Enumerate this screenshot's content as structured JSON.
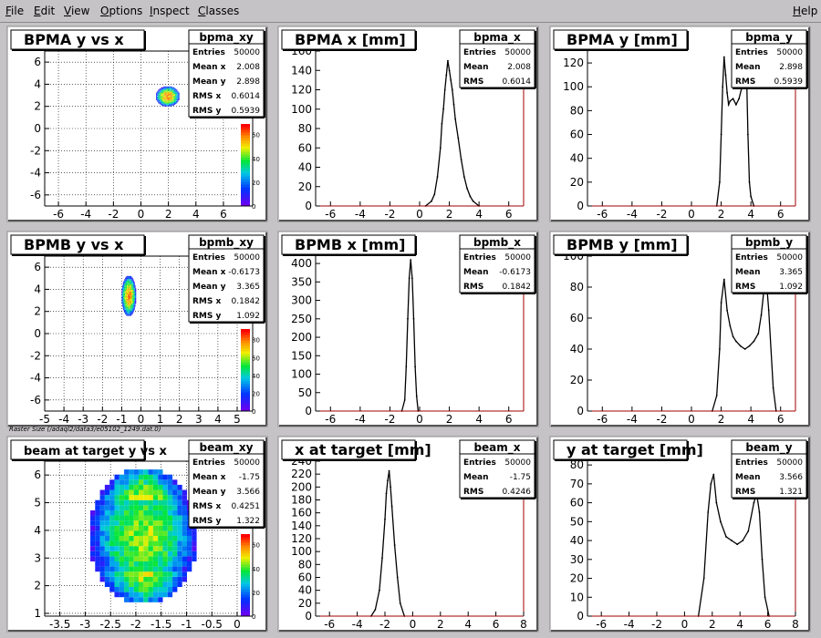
{
  "menu": {
    "items": [
      {
        "key": "file",
        "first": "F",
        "rest": "ile"
      },
      {
        "key": "edit",
        "first": "E",
        "rest": "dit"
      },
      {
        "key": "view",
        "first": "V",
        "rest": "iew"
      },
      {
        "key": "options",
        "first": "O",
        "rest": "ptions"
      },
      {
        "key": "inspect",
        "first": "I",
        "rest": "nspect"
      },
      {
        "key": "classes",
        "first": "C",
        "rest": "lasses"
      }
    ],
    "help": {
      "first": "H",
      "rest": "elp"
    }
  },
  "raster_caption": "Raster Size (/adaql2/data3/e05102_1249.dat.0)",
  "colors": {
    "window_bg": "#c6c3c6",
    "pad_bg": "#ffffff",
    "hist_line": "#000000",
    "frame_axis": "#a00000"
  },
  "chart_data": [
    {
      "id": "bpma_xy",
      "type": "heatmap",
      "title": "BPMA y vs x",
      "stats": {
        "name": "bpma_xy",
        "rows": [
          [
            "Entries",
            "50000"
          ],
          [
            "Mean x",
            "2.008"
          ],
          [
            "Mean y",
            "2.898"
          ],
          [
            "RMS x",
            "0.6014"
          ],
          [
            "RMS y",
            "0.5939"
          ]
        ]
      },
      "xlim": [
        -7,
        7
      ],
      "ylim": [
        -7,
        7
      ],
      "xticks": [
        -6,
        -4,
        -2,
        0,
        2,
        4,
        6
      ],
      "yticks": [
        -6,
        -4,
        -2,
        0,
        2,
        4,
        6
      ],
      "grid": true,
      "blobs": [
        {
          "x": [
            1.1,
            2.8
          ],
          "y": [
            2.0,
            3.8
          ]
        }
      ],
      "palette_ticks": [
        0,
        20,
        40,
        60
      ]
    },
    {
      "id": "bpma_x",
      "type": "line",
      "title": "BPMA x [mm]",
      "stats": {
        "name": "bpma_x",
        "rows": [
          [
            "Entries",
            "50000"
          ],
          [
            "Mean",
            "2.008"
          ],
          [
            "RMS",
            "0.6014"
          ]
        ]
      },
      "xlim": [
        -7,
        7
      ],
      "ylim": [
        0,
        160
      ],
      "xticks": [
        -6,
        -4,
        -2,
        0,
        2,
        4,
        6
      ],
      "yticks": [
        0,
        20,
        40,
        60,
        80,
        100,
        120,
        140,
        160
      ],
      "x": [
        0.4,
        0.8,
        1.0,
        1.2,
        1.4,
        1.5,
        1.6,
        1.7,
        1.8,
        1.9,
        2.0,
        2.1,
        2.2,
        2.3,
        2.4,
        2.6,
        2.8,
        3.0,
        3.2,
        3.4,
        3.6,
        4.0
      ],
      "y": [
        0,
        5,
        12,
        30,
        60,
        85,
        100,
        120,
        135,
        150,
        140,
        130,
        120,
        105,
        90,
        70,
        48,
        30,
        18,
        10,
        5,
        0
      ]
    },
    {
      "id": "bpma_y",
      "type": "line",
      "title": "BPMA y [mm]",
      "stats": {
        "name": "bpma_y",
        "rows": [
          [
            "Entries",
            "50000"
          ],
          [
            "Mean",
            "2.898"
          ],
          [
            "RMS",
            "0.5939"
          ]
        ]
      },
      "xlim": [
        -7,
        7
      ],
      "ylim": [
        0,
        130
      ],
      "xticks": [
        -6,
        -4,
        -2,
        0,
        2,
        4,
        6
      ],
      "yticks": [
        0,
        20,
        40,
        60,
        80,
        100,
        120
      ],
      "x": [
        1.7,
        1.9,
        2.0,
        2.1,
        2.2,
        2.3,
        2.4,
        2.5,
        2.6,
        2.8,
        3.0,
        3.2,
        3.4,
        3.5,
        3.6,
        3.7,
        3.8,
        3.9,
        4.0,
        4.2
      ],
      "y": [
        0,
        20,
        60,
        100,
        125,
        110,
        95,
        85,
        88,
        90,
        85,
        90,
        100,
        110,
        120,
        115,
        60,
        20,
        8,
        0
      ]
    },
    {
      "id": "bpmb_xy",
      "type": "heatmap",
      "title": "BPMB y vs x",
      "stats": {
        "name": "bpmb_xy",
        "rows": [
          [
            "Entries",
            "50000"
          ],
          [
            "Mean x",
            "-0.6173"
          ],
          [
            "Mean y",
            "3.365"
          ],
          [
            "RMS x",
            "0.1842"
          ],
          [
            "RMS y",
            "1.092"
          ]
        ]
      },
      "xlim": [
        -5,
        5
      ],
      "ylim": [
        -7,
        7
      ],
      "xticks": [
        -5,
        -4,
        -3,
        -2,
        -1,
        0,
        1,
        2,
        3,
        4,
        5
      ],
      "yticks": [
        -6,
        -4,
        -2,
        0,
        2,
        4,
        6
      ],
      "grid": true,
      "blobs": [
        {
          "x": [
            -1.0,
            -0.25
          ],
          "y": [
            1.6,
            5.2
          ]
        }
      ],
      "palette_ticks": [
        0,
        20,
        40,
        60,
        80
      ]
    },
    {
      "id": "bpmb_x",
      "type": "line",
      "title": "BPMB x [mm]",
      "stats": {
        "name": "bpmb_x",
        "rows": [
          [
            "Entries",
            "50000"
          ],
          [
            "Mean",
            "-0.6173"
          ],
          [
            "RMS",
            "0.1842"
          ]
        ]
      },
      "xlim": [
        -7,
        7
      ],
      "ylim": [
        0,
        420
      ],
      "xticks": [
        -6,
        -4,
        -2,
        0,
        2,
        4,
        6
      ],
      "yticks": [
        0,
        50,
        100,
        150,
        200,
        250,
        300,
        350,
        400
      ],
      "x": [
        -1.2,
        -1.0,
        -0.9,
        -0.8,
        -0.7,
        -0.6,
        -0.5,
        -0.4,
        -0.3,
        -0.2,
        -0.1
      ],
      "y": [
        0,
        30,
        120,
        250,
        360,
        410,
        360,
        250,
        120,
        40,
        0
      ]
    },
    {
      "id": "bpmb_y",
      "type": "line",
      "title": "BPMB y [mm]",
      "stats": {
        "name": "bpmb_y",
        "rows": [
          [
            "Entries",
            "50000"
          ],
          [
            "Mean",
            "3.365"
          ],
          [
            "RMS",
            "1.092"
          ]
        ]
      },
      "xlim": [
        -7,
        7
      ],
      "ylim": [
        0,
        100
      ],
      "xticks": [
        -6,
        -4,
        -2,
        0,
        2,
        4,
        6
      ],
      "yticks": [
        0,
        20,
        40,
        60,
        80,
        100
      ],
      "x": [
        1.4,
        1.7,
        1.9,
        2.0,
        2.2,
        2.4,
        2.6,
        2.8,
        3.0,
        3.3,
        3.6,
        3.9,
        4.2,
        4.5,
        4.7,
        4.9,
        5.0,
        5.2,
        5.5,
        5.7
      ],
      "y": [
        0,
        10,
        40,
        70,
        85,
        65,
        55,
        48,
        45,
        42,
        40,
        42,
        45,
        50,
        62,
        80,
        90,
        65,
        15,
        0
      ]
    },
    {
      "id": "beam_xy",
      "type": "heatmap",
      "title": "beam at target y vs x",
      "caption": "raster_caption",
      "stats": {
        "name": "beam_xy",
        "rows": [
          [
            "Entries",
            "50000"
          ],
          [
            "Mean x",
            "-1.75"
          ],
          [
            "Mean y",
            "3.566"
          ],
          [
            "RMS x",
            "0.4251"
          ],
          [
            "RMS y",
            "1.322"
          ]
        ]
      },
      "xlim": [
        -3.8,
        0
      ],
      "ylim": [
        0.9,
        6.5
      ],
      "xticks": [
        -3.5,
        -3,
        -2.5,
        -2,
        -1.5,
        -1,
        -0.5,
        0
      ],
      "yticks": [
        1,
        2,
        3,
        4,
        5,
        6
      ],
      "grid": true,
      "blobs": [
        {
          "x": [
            -2.9,
            -0.8
          ],
          "y": [
            1.4,
            6.2
          ]
        }
      ],
      "palette_ticks": [
        0,
        20,
        40,
        60
      ]
    },
    {
      "id": "beam_x",
      "type": "line",
      "title": "x at target [mm]",
      "stats": {
        "name": "beam_x",
        "rows": [
          [
            "Entries",
            "50000"
          ],
          [
            "Mean",
            "-1.75"
          ],
          [
            "RMS",
            "0.4246"
          ]
        ]
      },
      "xlim": [
        -7,
        8
      ],
      "ylim": [
        0,
        240
      ],
      "xticks": [
        -6,
        -4,
        -2,
        0,
        2,
        4,
        6,
        8
      ],
      "yticks": [
        0,
        20,
        40,
        60,
        80,
        100,
        120,
        140,
        160,
        180,
        200,
        220,
        240
      ],
      "x": [
        -3.0,
        -2.7,
        -2.4,
        -2.2,
        -2.0,
        -1.9,
        -1.8,
        -1.7,
        -1.6,
        -1.5,
        -1.3,
        -1.1,
        -0.9,
        -0.6
      ],
      "y": [
        0,
        10,
        40,
        90,
        150,
        190,
        210,
        225,
        200,
        170,
        110,
        60,
        20,
        0
      ]
    },
    {
      "id": "beam_y",
      "type": "line",
      "title": "y at target [mm]",
      "stats": {
        "name": "beam_y",
        "rows": [
          [
            "Entries",
            "50000"
          ],
          [
            "Mean",
            "3.566"
          ],
          [
            "RMS",
            "1.321"
          ]
        ]
      },
      "xlim": [
        -7,
        8
      ],
      "ylim": [
        0,
        82
      ],
      "xticks": [
        -6,
        -4,
        -2,
        0,
        2,
        4,
        6,
        8
      ],
      "yticks": [
        0,
        10,
        20,
        30,
        40,
        50,
        60,
        70,
        80
      ],
      "x": [
        1.0,
        1.4,
        1.7,
        1.9,
        2.1,
        2.3,
        2.6,
        3.0,
        3.4,
        3.8,
        4.2,
        4.6,
        5.0,
        5.2,
        5.4,
        5.6,
        5.8,
        6.1
      ],
      "y": [
        0,
        20,
        55,
        70,
        75,
        60,
        50,
        42,
        40,
        38,
        40,
        45,
        60,
        65,
        55,
        30,
        10,
        0
      ]
    }
  ]
}
